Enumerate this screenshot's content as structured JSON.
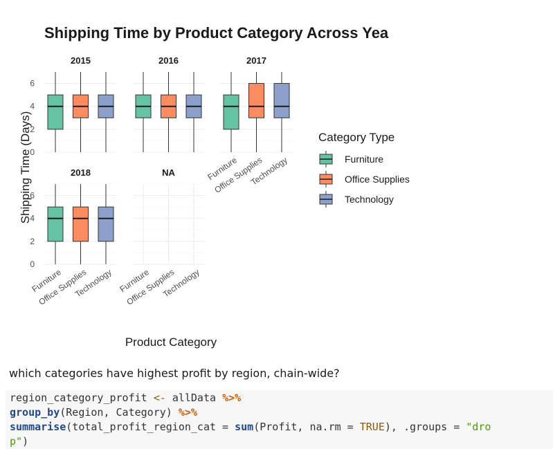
{
  "chart_data": {
    "type": "boxplot",
    "title": "Shipping Time by Product Category Across Yea",
    "xlabel": "Product Category",
    "ylabel": "Shipping Time (Days)",
    "ylim": [
      0,
      7
    ],
    "yticks": [
      0,
      2,
      4,
      6
    ],
    "grid": true,
    "legend_position": "right",
    "legend": {
      "title": "Category Type",
      "items": [
        {
          "name": "Furniture",
          "color": "#66c2a5"
        },
        {
          "name": "Office Supplies",
          "color": "#fc8d62"
        },
        {
          "name": "Technology",
          "color": "#8da0cb"
        }
      ]
    },
    "categories": [
      "Furniture",
      "Office Supplies",
      "Technology"
    ],
    "facets": [
      {
        "label": "2015",
        "boxes": [
          {
            "category": "Furniture",
            "min": 0,
            "q1": 2,
            "median": 4,
            "q3": 5,
            "max": 7
          },
          {
            "category": "Office Supplies",
            "min": 0,
            "q1": 3,
            "median": 4,
            "q3": 5,
            "max": 7
          },
          {
            "category": "Technology",
            "min": 0,
            "q1": 3,
            "median": 4,
            "q3": 5,
            "max": 7
          }
        ]
      },
      {
        "label": "2016",
        "boxes": [
          {
            "category": "Furniture",
            "min": 0,
            "q1": 3,
            "median": 4,
            "q3": 5,
            "max": 7
          },
          {
            "category": "Office Supplies",
            "min": 0,
            "q1": 3,
            "median": 4,
            "q3": 5,
            "max": 7
          },
          {
            "category": "Technology",
            "min": 0,
            "q1": 3,
            "median": 4,
            "q3": 5,
            "max": 7
          }
        ]
      },
      {
        "label": "2017",
        "boxes": [
          {
            "category": "Furniture",
            "min": 0,
            "q1": 2,
            "median": 4,
            "q3": 5,
            "max": 7
          },
          {
            "category": "Office Supplies",
            "min": 0,
            "q1": 3,
            "median": 4,
            "q3": 6,
            "max": 7
          },
          {
            "category": "Technology",
            "min": 0,
            "q1": 3,
            "median": 4,
            "q3": 6,
            "max": 7
          }
        ]
      },
      {
        "label": "2018",
        "boxes": [
          {
            "category": "Furniture",
            "min": 0,
            "q1": 2,
            "median": 4,
            "q3": 5,
            "max": 7
          },
          {
            "category": "Office Supplies",
            "min": 0,
            "q1": 2,
            "median": 4,
            "q3": 5,
            "max": 7
          },
          {
            "category": "Technology",
            "min": 0,
            "q1": 2,
            "median": 4,
            "q3": 5,
            "max": 7
          }
        ]
      },
      {
        "label": "NA",
        "boxes": []
      }
    ]
  },
  "prose": {
    "question": "which categories have highest profit by region, chain-wide?"
  },
  "code": {
    "line1": {
      "var": "region_category_profit",
      "assign": "<-",
      "obj": "allData",
      "pipe": "%>%"
    },
    "line2": {
      "fn": "group_by",
      "args": "(Region, Category) ",
      "pipe": "%>%"
    },
    "line3": {
      "fn": "summarise",
      "a1": "(total_profit_region_cat = ",
      "fn2": "sum",
      "a2": "(Profit, na.rm = ",
      "const": "TRUE",
      "a3": "), .groups = ",
      "str": "\"dro"
    },
    "line4": {
      "str": "p\"",
      "rest": ")"
    }
  }
}
